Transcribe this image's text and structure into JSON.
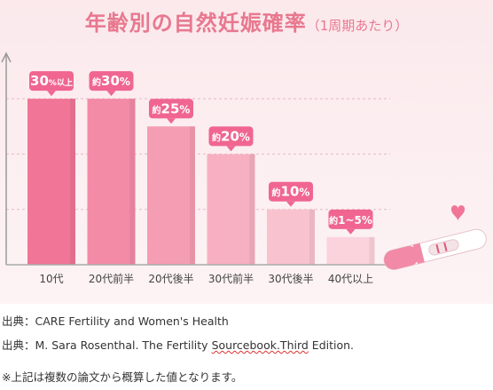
{
  "title": {
    "main": "年齢別の自然妊娠確率",
    "sub": "（1周期あたり）"
  },
  "chart_data": {
    "type": "bar",
    "categories": [
      "10代",
      "20代前半",
      "20代後半",
      "30代前半",
      "30代後半",
      "40代以上"
    ],
    "values": [
      30,
      30,
      25,
      20,
      10,
      5
    ],
    "value_labels": [
      {
        "prefix": "",
        "value": "30",
        "suffix": "%以上"
      },
      {
        "prefix": "約",
        "value": "30",
        "suffix": "%"
      },
      {
        "prefix": "約",
        "value": "25",
        "suffix": "%"
      },
      {
        "prefix": "約",
        "value": "20",
        "suffix": "%"
      },
      {
        "prefix": "約",
        "value": "10",
        "suffix": "%"
      },
      {
        "prefix": "約",
        "value": "1~5",
        "suffix": "%"
      }
    ],
    "ylim": [
      0,
      35
    ],
    "grid": true,
    "colors": [
      "#f07596",
      "#f38aa6",
      "#f59db3",
      "#f7b0c1",
      "#f9c2cf",
      "#fbd3dc"
    ],
    "label_bg": "#f06690"
  },
  "sources": {
    "line1": "出典：CARE Fertility and Women's Health",
    "line2_before": "出典：M. Sara Rosenthal. The Fertility ",
    "line2_underlined": "Sourcebook.Third",
    "line2_after": " Edition.",
    "note": "※上記は複数の論文から概算した値となります。"
  }
}
